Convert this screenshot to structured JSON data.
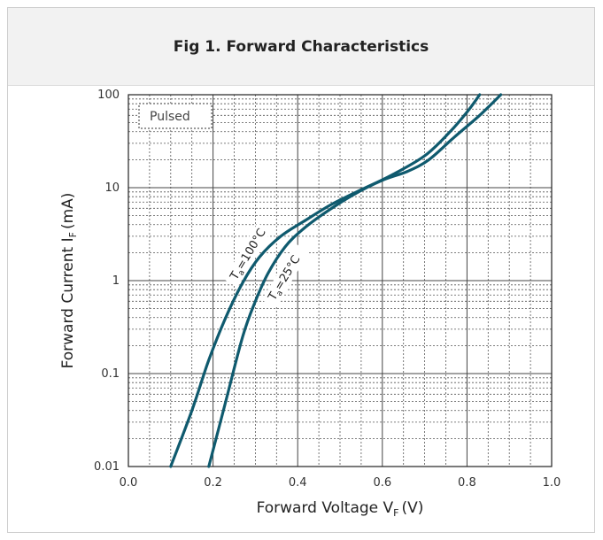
{
  "chart_data": {
    "type": "line",
    "title": "Fig 1. Forward Characteristics",
    "xlabel": "Forward Voltage V",
    "xlabel_sub": "F",
    "xlabel_unit": "(V)",
    "ylabel": "Forward Current I",
    "ylabel_sub": "F",
    "ylabel_unit": "(mA)",
    "xlim": [
      0.0,
      1.0
    ],
    "ylim": [
      0.01,
      100
    ],
    "yscale": "log",
    "x_ticks": [
      "0.0",
      "0.2",
      "0.4",
      "0.6",
      "0.8",
      "1.0"
    ],
    "y_ticks": [
      "0.01",
      "0.1",
      "1",
      "10",
      "100"
    ],
    "grid": true,
    "annotation": "Pulsed",
    "series": [
      {
        "name": "T_a=100°C",
        "label_main": "T",
        "label_sub": "a",
        "label_rest": "=100°C",
        "color": "#0f5a6e",
        "points": [
          [
            0.1,
            0.01
          ],
          [
            0.15,
            0.04
          ],
          [
            0.19,
            0.14
          ],
          [
            0.23,
            0.4
          ],
          [
            0.27,
            0.95
          ],
          [
            0.31,
            1.8
          ],
          [
            0.36,
            3.0
          ],
          [
            0.42,
            4.5
          ],
          [
            0.48,
            6.6
          ],
          [
            0.55,
            9.5
          ],
          [
            0.62,
            13.5
          ],
          [
            0.7,
            22
          ],
          [
            0.76,
            40
          ],
          [
            0.8,
            65
          ],
          [
            0.83,
            100
          ]
        ]
      },
      {
        "name": "T_a=25°C",
        "label_main": "T",
        "label_sub": "a",
        "label_rest": "=25°C",
        "color": "#0f5a6e",
        "points": [
          [
            0.19,
            0.01
          ],
          [
            0.23,
            0.05
          ],
          [
            0.27,
            0.25
          ],
          [
            0.3,
            0.6
          ],
          [
            0.33,
            1.2
          ],
          [
            0.37,
            2.3
          ],
          [
            0.41,
            3.5
          ],
          [
            0.46,
            5.2
          ],
          [
            0.53,
            8.3
          ],
          [
            0.6,
            12
          ],
          [
            0.66,
            15
          ],
          [
            0.71,
            20
          ],
          [
            0.77,
            35
          ],
          [
            0.83,
            60
          ],
          [
            0.88,
            100
          ]
        ]
      }
    ]
  }
}
